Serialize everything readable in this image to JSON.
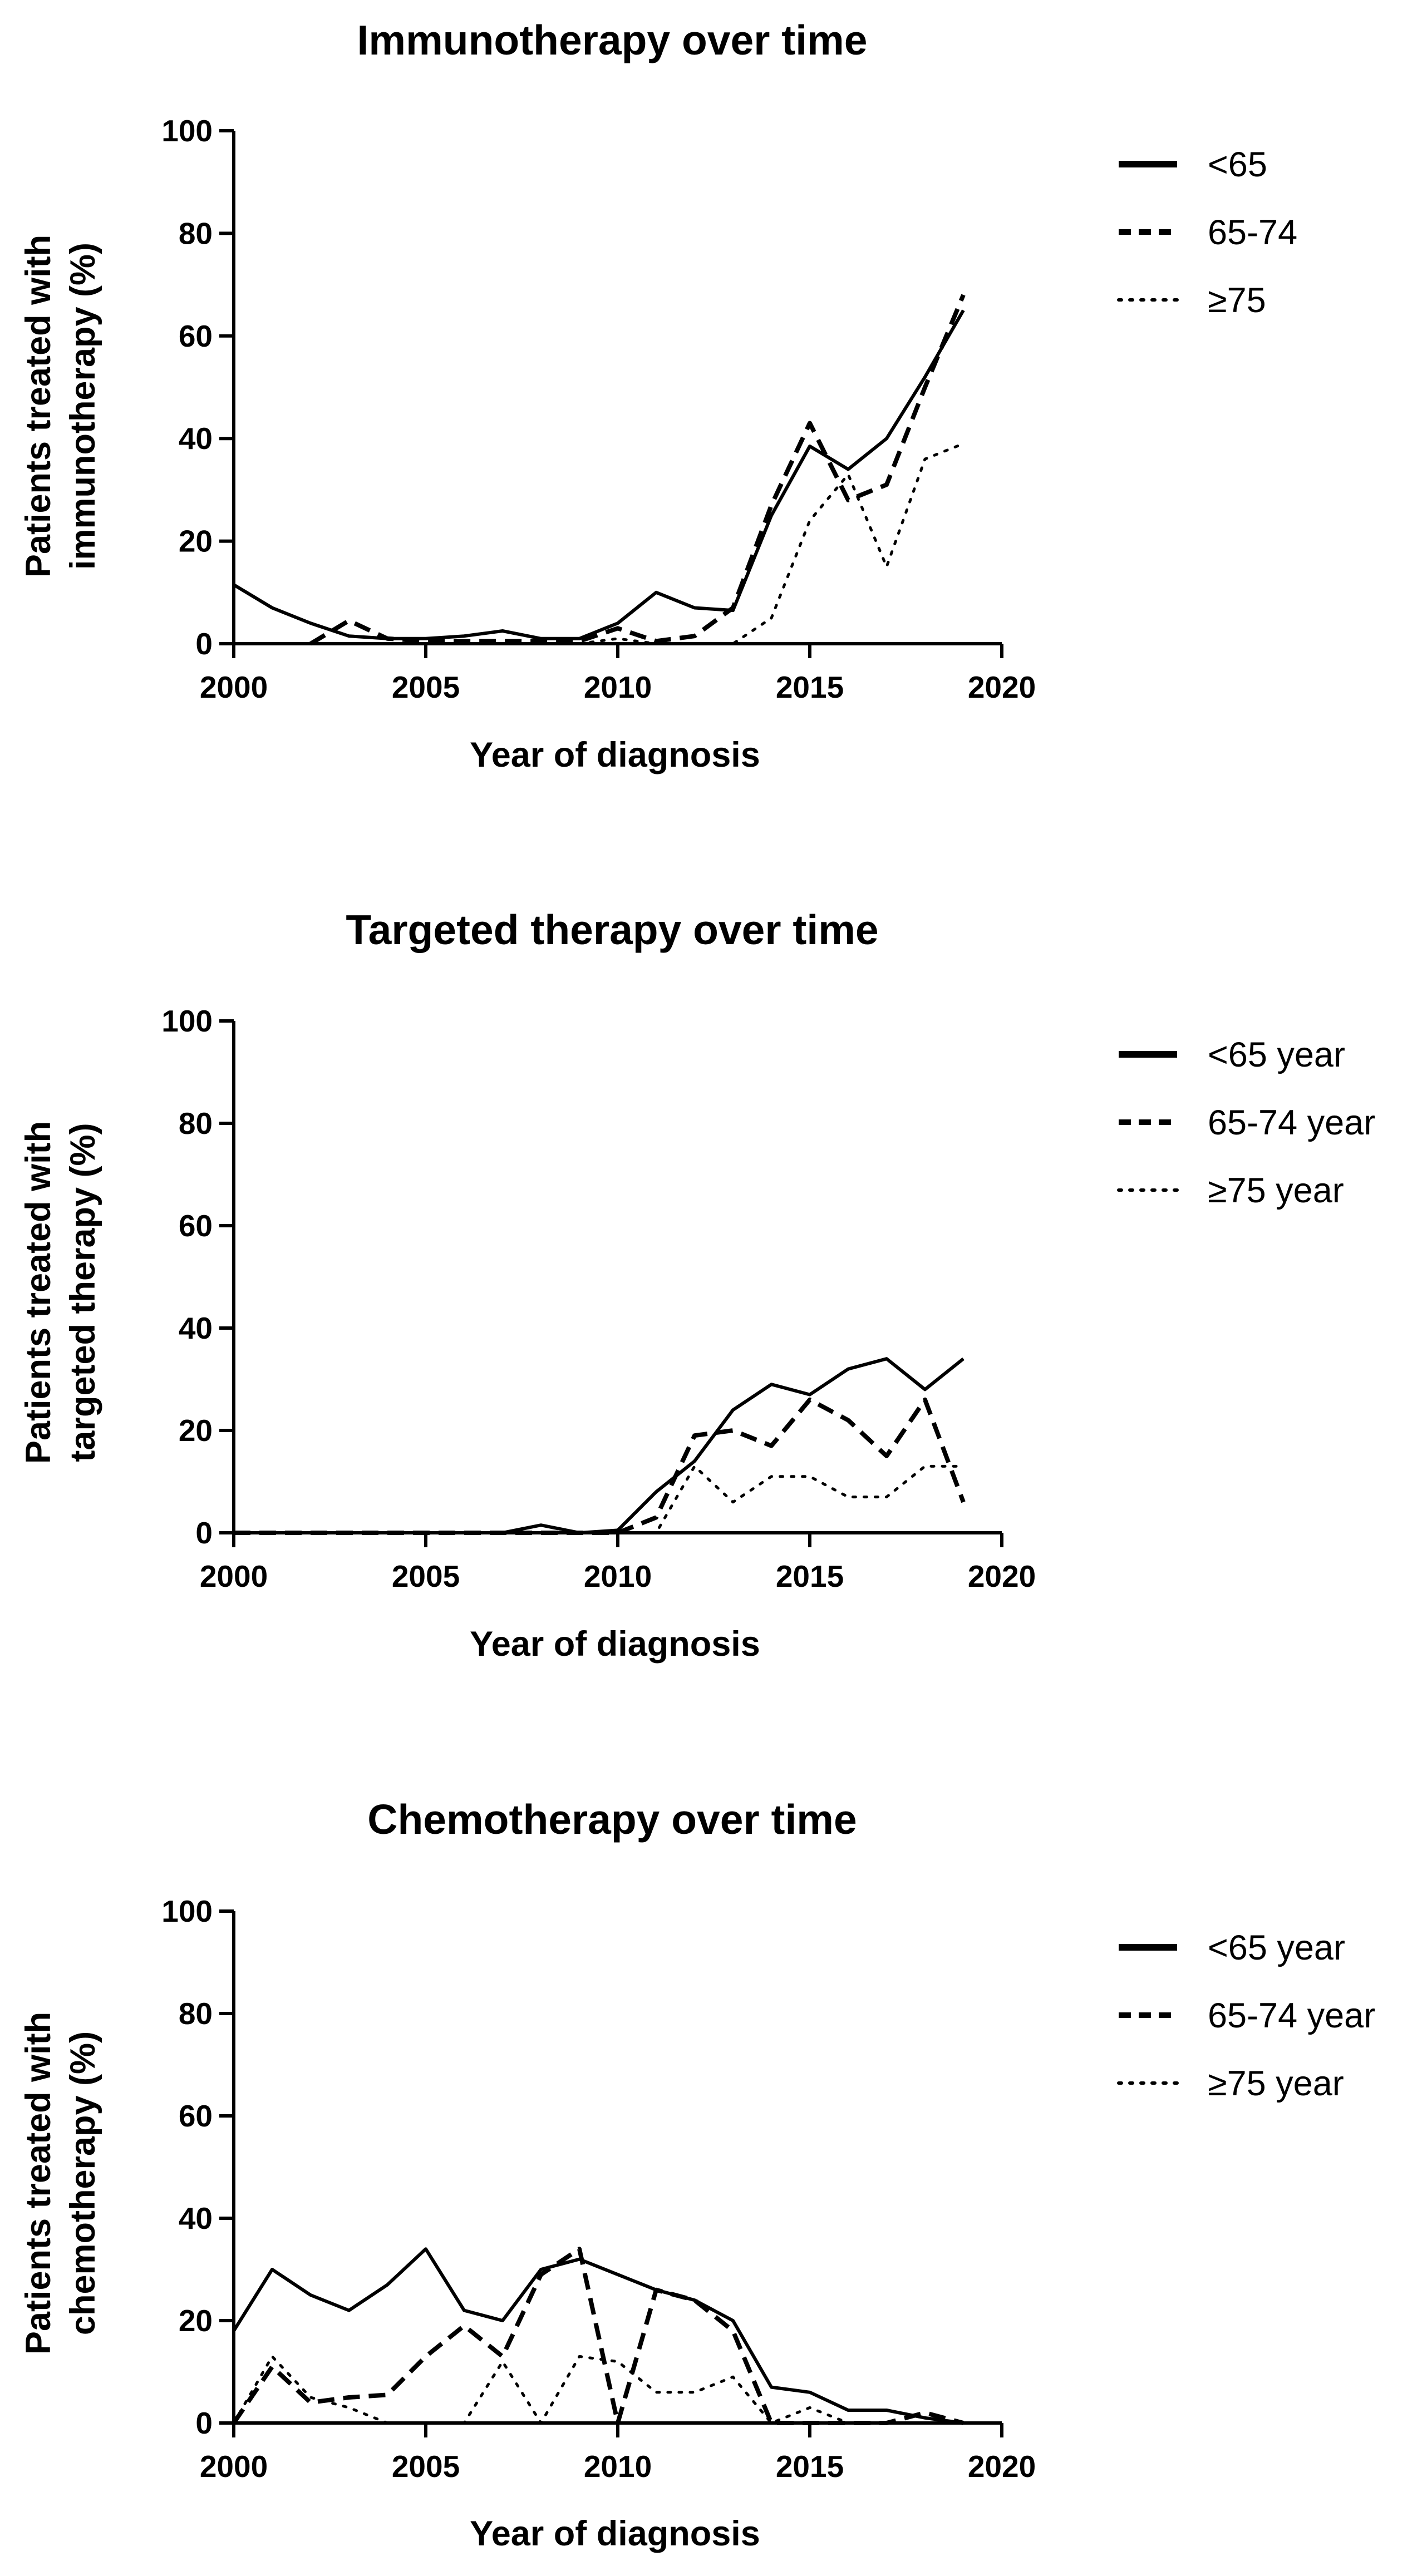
{
  "chart_data": [
    {
      "type": "line",
      "title": "Immunotherapy over time",
      "xlabel": "Year of diagnosis",
      "ylabel_lines": [
        "Patients treated with",
        "immunotherapy (%)"
      ],
      "xlim": [
        2000,
        2020
      ],
      "ylim": [
        0,
        100
      ],
      "xticks": [
        2000,
        2005,
        2010,
        2015,
        2020
      ],
      "yticks": [
        0,
        20,
        40,
        60,
        80,
        100
      ],
      "grid": false,
      "legend_position": "right",
      "x": [
        2000,
        2001,
        2002,
        2003,
        2004,
        2005,
        2006,
        2007,
        2008,
        2009,
        2010,
        2011,
        2012,
        2013,
        2014,
        2015,
        2016,
        2017,
        2018,
        2019
      ],
      "series": [
        {
          "name": "<65",
          "style": "solid",
          "values": [
            11.5,
            7,
            4,
            1.5,
            1,
            1,
            1.5,
            2.5,
            1,
            1,
            4,
            10,
            7,
            6.5,
            25,
            38.5,
            34,
            40,
            52,
            65
          ]
        },
        {
          "name": "65-74",
          "style": "dashed",
          "values": [
            null,
            null,
            0,
            4.5,
            1,
            0.5,
            0.5,
            0.5,
            0.5,
            0.5,
            3,
            0.5,
            1.5,
            7,
            27,
            43,
            28,
            31,
            50,
            68
          ]
        },
        {
          "name": "≥75",
          "style": "dotted",
          "values": [
            null,
            null,
            null,
            null,
            null,
            null,
            null,
            null,
            null,
            0,
            1,
            0,
            0,
            0,
            5,
            24,
            33,
            15,
            36,
            39
          ]
        }
      ]
    },
    {
      "type": "line",
      "title": "Targeted therapy over time",
      "xlabel": "Year of diagnosis",
      "ylabel_lines": [
        "Patients treated with",
        "targeted therapy (%)"
      ],
      "xlim": [
        2000,
        2020
      ],
      "ylim": [
        0,
        100
      ],
      "xticks": [
        2000,
        2005,
        2010,
        2015,
        2020
      ],
      "yticks": [
        0,
        20,
        40,
        60,
        80,
        100
      ],
      "grid": false,
      "legend_position": "right",
      "x": [
        2000,
        2001,
        2002,
        2003,
        2004,
        2005,
        2006,
        2007,
        2008,
        2009,
        2010,
        2011,
        2012,
        2013,
        2014,
        2015,
        2016,
        2017,
        2018,
        2019
      ],
      "series": [
        {
          "name": "<65 year",
          "style": "solid",
          "values": [
            0,
            0,
            0,
            0,
            0,
            0,
            0,
            0,
            1.5,
            0,
            0.5,
            8,
            14,
            24,
            29,
            27,
            32,
            34,
            28,
            34
          ]
        },
        {
          "name": "65-74 year",
          "style": "dashed",
          "values": [
            0,
            0,
            0,
            0,
            0,
            0,
            0,
            0,
            0,
            0,
            0,
            3,
            19,
            20,
            17,
            26,
            22,
            15,
            26,
            6
          ]
        },
        {
          "name": "≥75 year",
          "style": "dotted",
          "values": [
            null,
            null,
            null,
            null,
            null,
            null,
            null,
            null,
            null,
            null,
            0,
            0,
            13,
            6,
            11,
            11,
            7,
            7,
            13,
            13
          ]
        }
      ]
    },
    {
      "type": "line",
      "title": "Chemotherapy over time",
      "xlabel": "Year of diagnosis",
      "ylabel_lines": [
        "Patients treated with",
        "chemotherapy (%)"
      ],
      "xlim": [
        2000,
        2020
      ],
      "ylim": [
        0,
        100
      ],
      "xticks": [
        2000,
        2005,
        2010,
        2015,
        2020
      ],
      "yticks": [
        0,
        20,
        40,
        60,
        80,
        100
      ],
      "grid": false,
      "legend_position": "right",
      "x": [
        2000,
        2001,
        2002,
        2003,
        2004,
        2005,
        2006,
        2007,
        2008,
        2009,
        2010,
        2011,
        2012,
        2013,
        2014,
        2015,
        2016,
        2017,
        2018,
        2019
      ],
      "series": [
        {
          "name": "<65 year",
          "style": "solid",
          "values": [
            18,
            30,
            25,
            22,
            27,
            34,
            22,
            20,
            30,
            32,
            29,
            26,
            24,
            20,
            7,
            6,
            2.5,
            2.5,
            1,
            0
          ]
        },
        {
          "name": "65-74 year",
          "style": "dashed",
          "values": [
            0,
            11,
            4,
            5,
            5.5,
            13,
            19,
            13,
            29,
            34,
            0,
            26,
            24,
            18,
            0,
            0,
            0,
            0,
            2,
            0
          ]
        },
        {
          "name": "≥75 year",
          "style": "dotted",
          "values": [
            0,
            13,
            5,
            3,
            0,
            0,
            0,
            12,
            0,
            13,
            12,
            6,
            6,
            9,
            0,
            3,
            0,
            0,
            0,
            0
          ]
        }
      ]
    }
  ]
}
